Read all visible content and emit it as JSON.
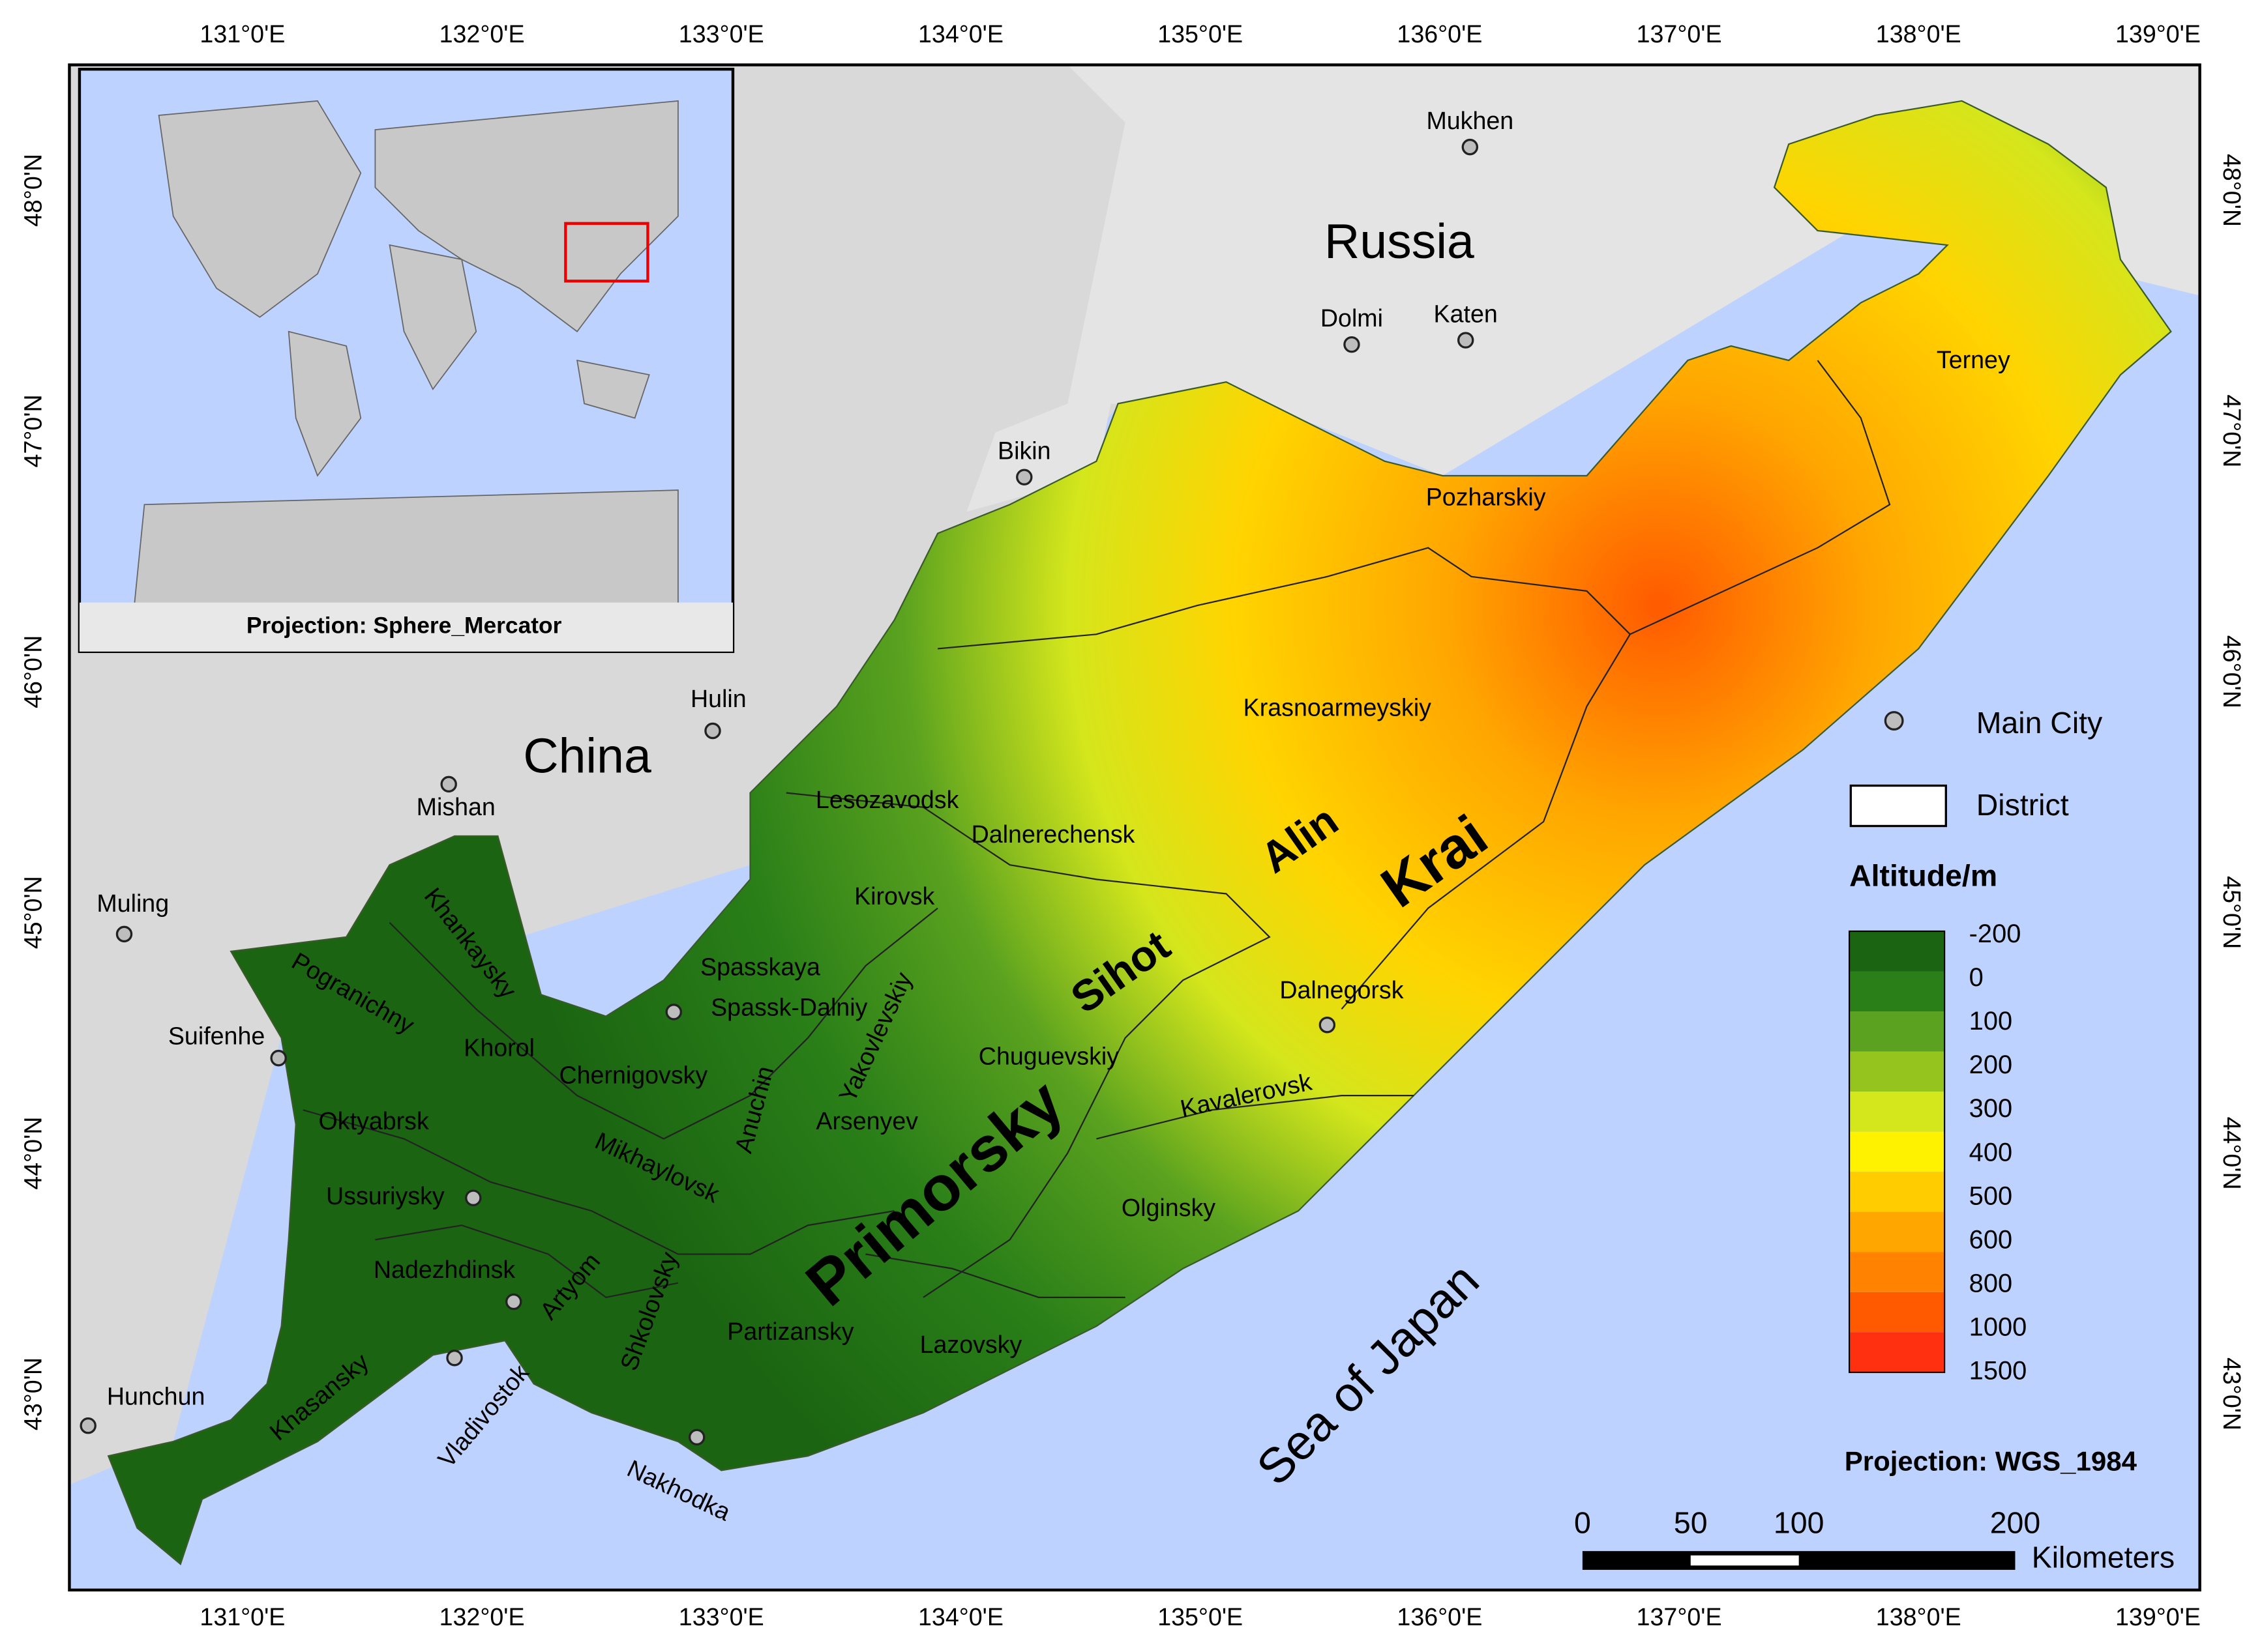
{
  "graticule": {
    "longitudes": [
      "131°0'E",
      "132°0'E",
      "133°0'E",
      "134°0'E",
      "135°0'E",
      "136°0'E",
      "137°0'E",
      "138°0'E",
      "139°0'E"
    ],
    "latitudes": [
      "48°0'N",
      "47°0'N",
      "46°0'N",
      "45°0'N",
      "44°0'N",
      "43°0'N"
    ]
  },
  "countries": [
    "Russia",
    "China"
  ],
  "cities": [
    "Mukhen",
    "Dolmi",
    "Katen",
    "Bikin",
    "Hulin",
    "Mishan",
    "Muling",
    "Suifenhe",
    "Hunchun",
    "Spassk-Dalniy",
    "Dalnegorsk",
    "Ussuriysky"
  ],
  "districts": [
    "Terney",
    "Pozharskiy",
    "Krasnoarmeyskiy",
    "Lesozavodsk",
    "Dalnerechensk",
    "Kirovsk",
    "Spasskaya",
    "Khankaysky",
    "Pogranichny",
    "Khorol",
    "Chernigovsky",
    "Yakovlevskiy",
    "Anuchin",
    "Arsenyev",
    "Chuguevskiy",
    "Kavalerovsk",
    "Oktyabrsk",
    "Mikhaylovsk",
    "Nadezhdinsk",
    "Artyom",
    "Shkolovsky",
    "Partizansky",
    "Lazovsky",
    "Olginsky",
    "Khasansky",
    "Vladivostok",
    "Nakhodka"
  ],
  "region_labels": [
    "Primorsky",
    "Krai",
    "Sihot",
    "Alin"
  ],
  "sea": "Sea of Japan",
  "inset": {
    "projection": "Projection: Sphere_Mercator"
  },
  "legend": {
    "main_city": "Main City",
    "district": "District",
    "altitude_title": "Altitude/m",
    "altitude_classes": [
      {
        "value": -200,
        "color": "#1b6512"
      },
      {
        "value": 0,
        "color": "#2a7f18"
      },
      {
        "value": 100,
        "color": "#5aa21f"
      },
      {
        "value": 200,
        "color": "#96c41f"
      },
      {
        "value": 300,
        "color": "#d4e61c"
      },
      {
        "value": 400,
        "color": "#fff200"
      },
      {
        "value": 500,
        "color": "#ffcc00"
      },
      {
        "value": 600,
        "color": "#ffa600"
      },
      {
        "value": 800,
        "color": "#ff8200"
      },
      {
        "value": 1000,
        "color": "#ff5a00"
      },
      {
        "value": 1500,
        "color": "#ff3010"
      }
    ]
  },
  "projection": "Projection: WGS_1984",
  "scale_bar": {
    "ticks": [
      0,
      50,
      100,
      200
    ],
    "unit": "Kilometers"
  }
}
